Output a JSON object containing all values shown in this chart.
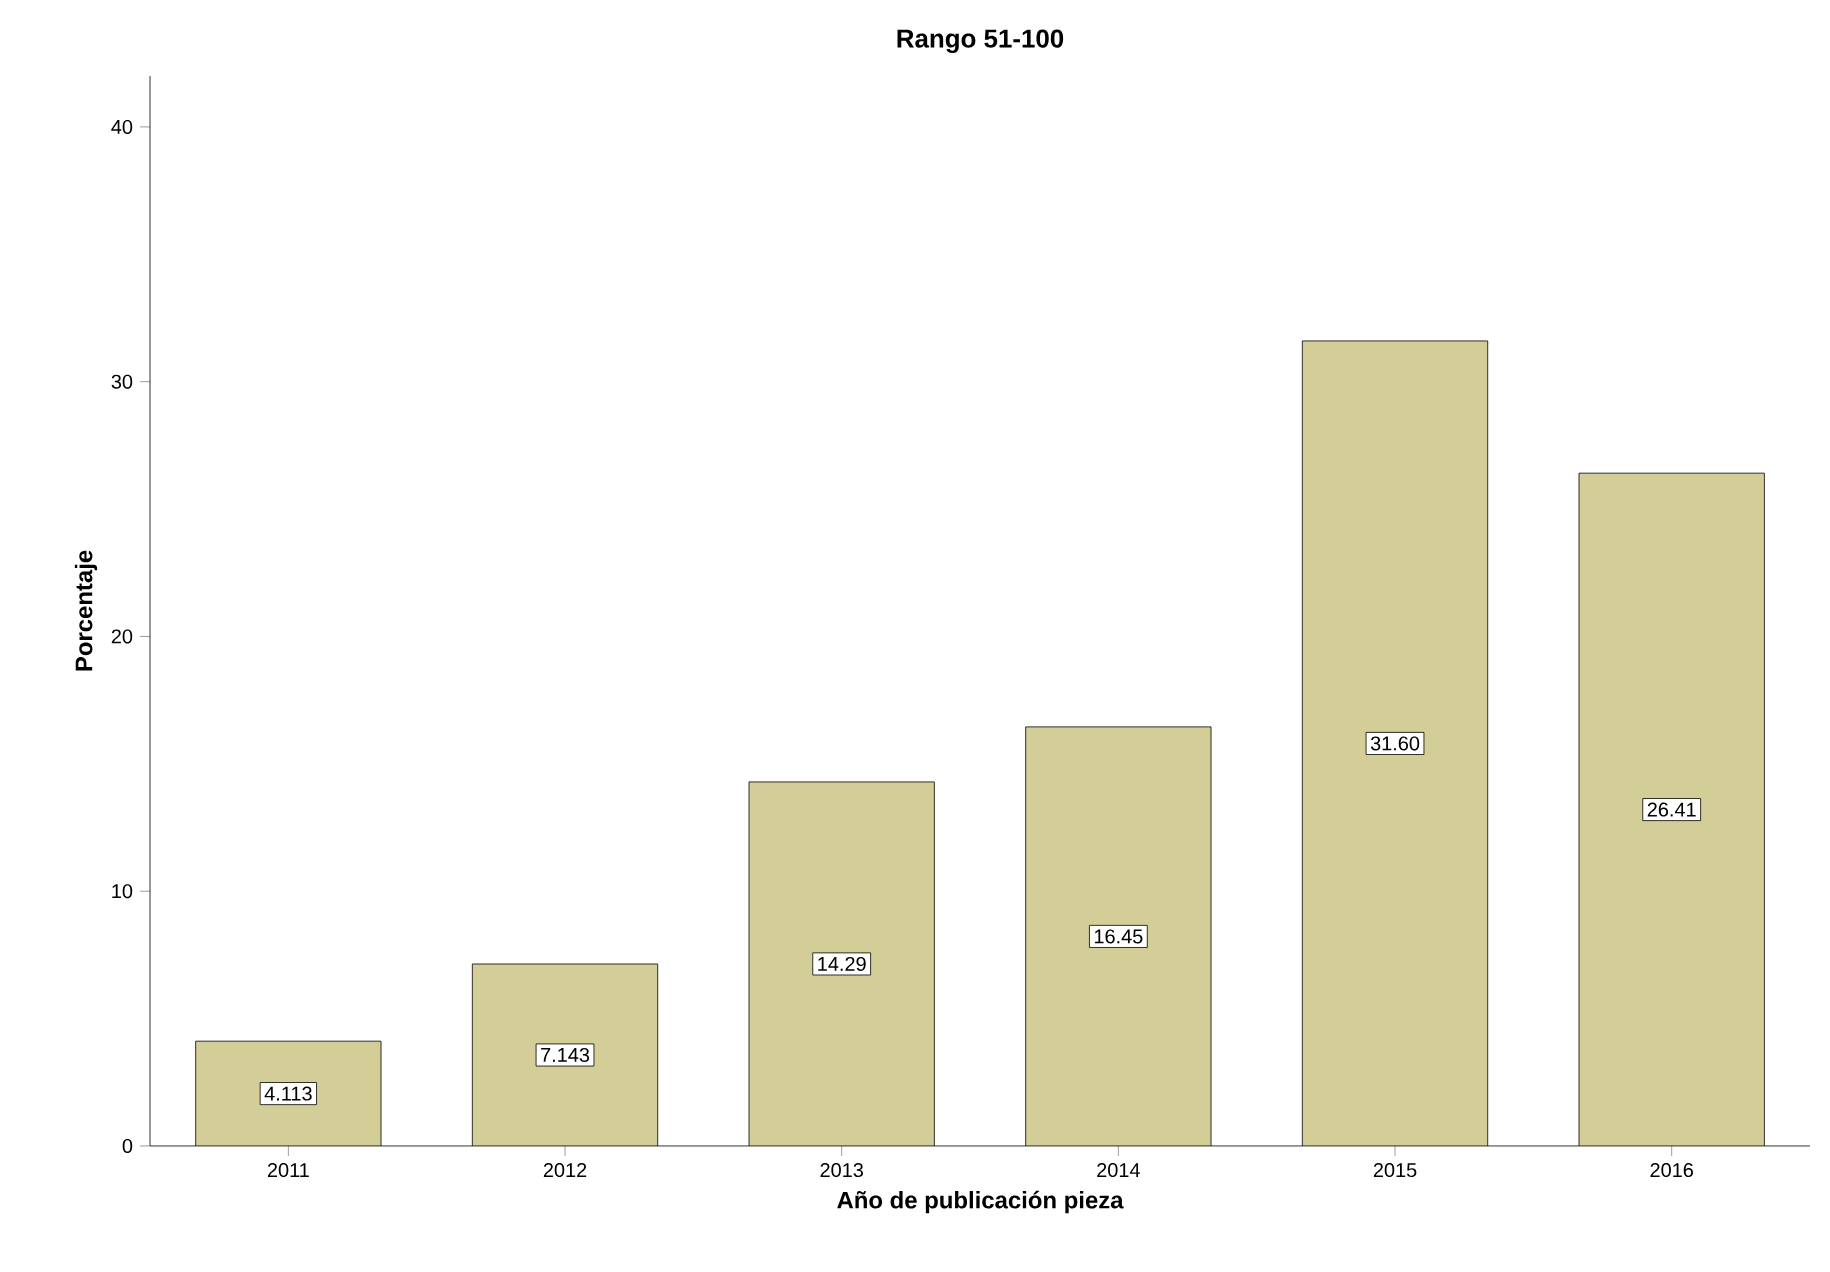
{
  "chart_data": {
    "type": "bar",
    "title": "Rango 51-100",
    "xlabel": "Año de publicación pieza",
    "ylabel": "Porcentaje",
    "categories": [
      "2011",
      "2012",
      "2013",
      "2014",
      "2015",
      "2016"
    ],
    "values": [
      4.113,
      7.143,
      14.29,
      16.45,
      31.6,
      26.41
    ],
    "value_labels": [
      "4.113",
      "7.143",
      "14.29",
      "16.45",
      "31.60",
      "26.41"
    ],
    "color": "#d3ce97",
    "ylim": [
      0,
      42
    ],
    "yticks": [
      0,
      10,
      20,
      30,
      40
    ]
  }
}
